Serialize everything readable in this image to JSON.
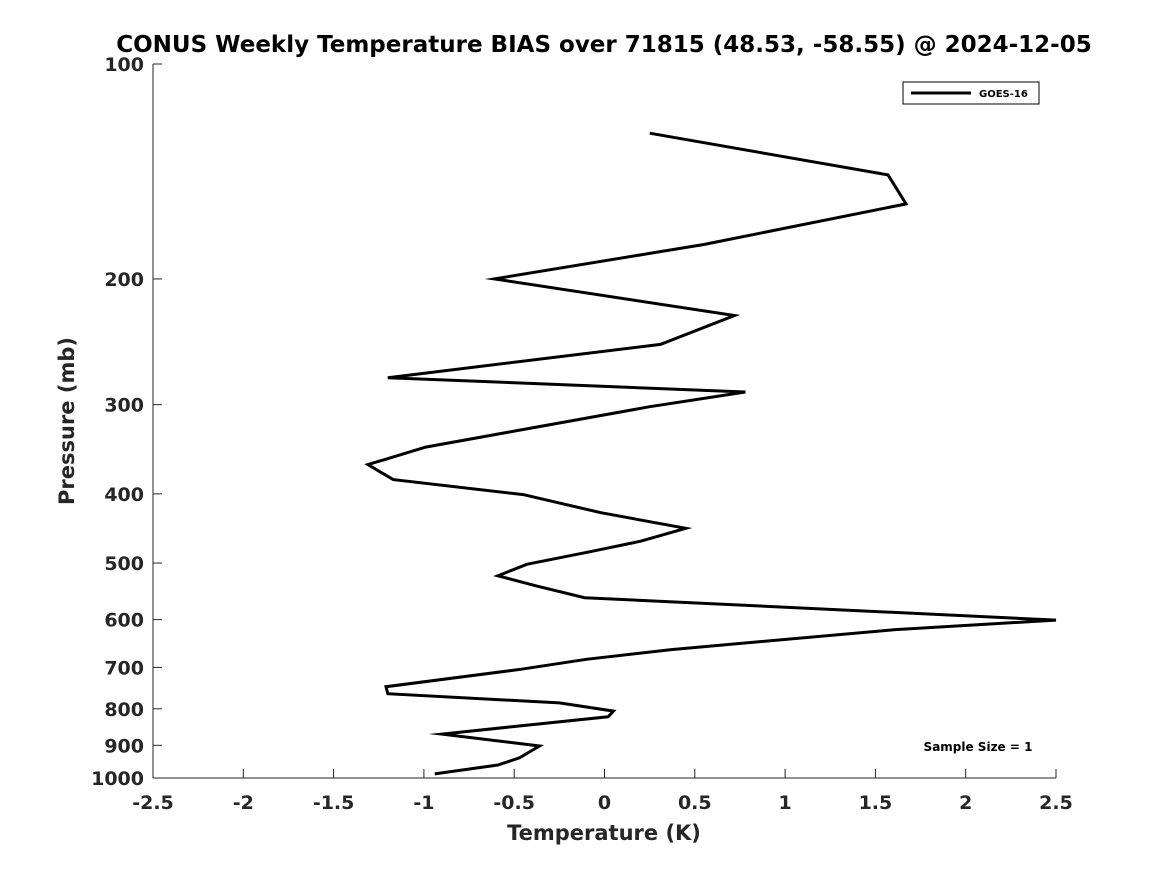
{
  "chart_data": {
    "type": "line",
    "title": "CONUS Weekly Temperature BIAS over 71815 (48.53, -58.55) @ 2024-12-05",
    "xlabel": "Temperature (K)",
    "ylabel": "Pressure (mb)",
    "xlim": [
      -2.5,
      2.5
    ],
    "ylim": [
      1000,
      100
    ],
    "y_scale": "log",
    "y_reversed": true,
    "grid": false,
    "x_ticks": [
      -2.5,
      -2,
      -1.5,
      -1,
      -0.5,
      0,
      0.5,
      1,
      1.5,
      2,
      2.5
    ],
    "x_tick_labels": [
      "-2.5",
      "-2",
      "-1.5",
      "-1",
      "-0.5",
      "0",
      "0.5",
      "1",
      "1.5",
      "2",
      "2.5"
    ],
    "y_ticks": [
      100,
      200,
      300,
      400,
      500,
      600,
      700,
      800,
      900,
      1000
    ],
    "y_tick_labels": [
      "100",
      "200",
      "300",
      "400",
      "500",
      "600",
      "700",
      "800",
      "900",
      "1000"
    ],
    "legend_position": "top-right",
    "annotation": "Sample Size = 1",
    "series": [
      {
        "name": "GOES-16",
        "color": "#000000",
        "points": [
          {
            "x": 0.25,
            "p": 125
          },
          {
            "x": 1.57,
            "p": 143
          },
          {
            "x": 1.67,
            "p": 157
          },
          {
            "x": 0.55,
            "p": 179
          },
          {
            "x": -0.61,
            "p": 200
          },
          {
            "x": 0.72,
            "p": 225
          },
          {
            "x": 0.31,
            "p": 247
          },
          {
            "x": -1.2,
            "p": 275
          },
          {
            "x": 0.78,
            "p": 288
          },
          {
            "x": 0.25,
            "p": 302
          },
          {
            "x": -0.45,
            "p": 325
          },
          {
            "x": -0.99,
            "p": 344
          },
          {
            "x": -1.31,
            "p": 364
          },
          {
            "x": -1.17,
            "p": 382
          },
          {
            "x": -0.45,
            "p": 401
          },
          {
            "x": -0.02,
            "p": 425
          },
          {
            "x": 0.45,
            "p": 447
          },
          {
            "x": 0.2,
            "p": 466
          },
          {
            "x": -0.08,
            "p": 482
          },
          {
            "x": -0.43,
            "p": 502
          },
          {
            "x": -0.59,
            "p": 521
          },
          {
            "x": -0.38,
            "p": 538
          },
          {
            "x": -0.11,
            "p": 559
          },
          {
            "x": 2.5,
            "p": 601
          },
          {
            "x": 1.6,
            "p": 620
          },
          {
            "x": 0.37,
            "p": 661
          },
          {
            "x": -0.1,
            "p": 682
          },
          {
            "x": -0.46,
            "p": 704
          },
          {
            "x": -1.21,
            "p": 745
          },
          {
            "x": -1.2,
            "p": 762
          },
          {
            "x": -0.25,
            "p": 785
          },
          {
            "x": 0.05,
            "p": 806
          },
          {
            "x": 0.02,
            "p": 821
          },
          {
            "x": -0.52,
            "p": 848
          },
          {
            "x": -0.9,
            "p": 868
          },
          {
            "x": -0.36,
            "p": 902
          },
          {
            "x": -0.47,
            "p": 937
          },
          {
            "x": -0.59,
            "p": 959
          },
          {
            "x": -0.94,
            "p": 987
          }
        ]
      }
    ]
  }
}
